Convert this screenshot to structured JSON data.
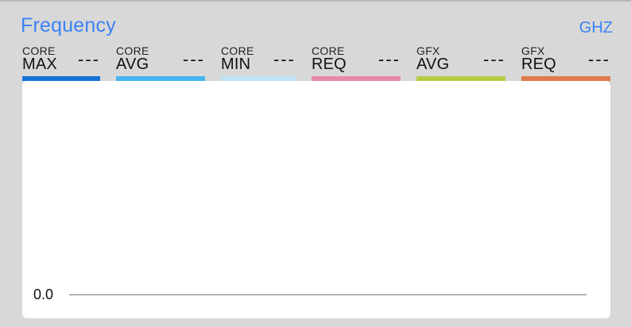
{
  "panel": {
    "title": "Frequency",
    "unit": "GHZ"
  },
  "metrics": [
    {
      "top": "CORE",
      "main": "MAX",
      "value": "---",
      "color": "#1673d4"
    },
    {
      "top": "CORE",
      "main": "AVG",
      "value": "---",
      "color": "#45b6ef"
    },
    {
      "top": "CORE",
      "main": "MIN",
      "value": "---",
      "color": "#bfe3f6"
    },
    {
      "top": "CORE",
      "main": "REQ",
      "value": "---",
      "color": "#e58aa9"
    },
    {
      "top": "GFX",
      "main": "AVG",
      "value": "---",
      "color": "#b5cc45"
    },
    {
      "top": "GFX",
      "main": "REQ",
      "value": "---",
      "color": "#e07a4b"
    }
  ],
  "graph": {
    "y_label": "0.0"
  }
}
